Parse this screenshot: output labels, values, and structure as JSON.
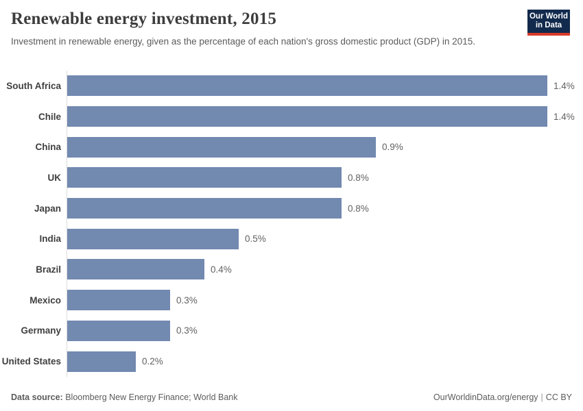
{
  "header": {
    "title": "Renewable energy investment, 2015",
    "subtitle": "Investment in renewable energy, given as the percentage of each nation's gross domestic product (GDP) in 2015."
  },
  "logo": {
    "line1": "Our World",
    "line2": "in Data",
    "bg_color": "#122a4d",
    "stripe_color": "#d93a2b"
  },
  "chart_data": {
    "type": "bar",
    "orientation": "horizontal",
    "title": "Renewable energy investment, 2015",
    "categories": [
      "South Africa",
      "Chile",
      "China",
      "UK",
      "Japan",
      "India",
      "Brazil",
      "Mexico",
      "Germany",
      "United States"
    ],
    "values": [
      1.4,
      1.4,
      0.9,
      0.8,
      0.8,
      0.5,
      0.4,
      0.3,
      0.3,
      0.2
    ],
    "value_labels": [
      "1.4%",
      "1.4%",
      "0.9%",
      "0.8%",
      "0.8%",
      "0.5%",
      "0.4%",
      "0.3%",
      "0.3%",
      "0.2%"
    ],
    "unit": "%",
    "xlim": [
      0,
      1.4
    ],
    "grid": false,
    "legend": false,
    "bar_color": "#7289b0",
    "axis_color": "#dcdcdc"
  },
  "footer": {
    "datasource_label": "Data source:",
    "datasource_value": " Bloomberg New Energy Finance; World Bank",
    "link": "OurWorldinData.org/energy",
    "separator": "|",
    "license": "CC BY"
  }
}
